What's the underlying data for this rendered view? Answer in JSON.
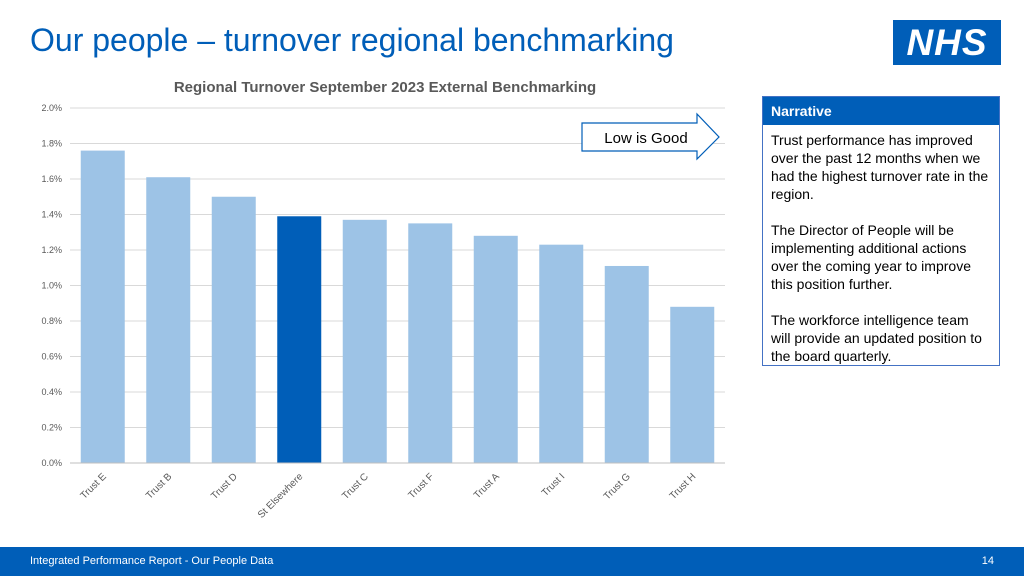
{
  "page": {
    "title": "Our people – turnover regional benchmarking",
    "logo_text": "NHS",
    "footer_text": "Integrated Performance Report - Our People Data",
    "page_number": "14"
  },
  "narrative": {
    "heading": "Narrative",
    "paragraphs": [
      "Trust performance has improved over the past 12 months when we had the highest turnover rate in the region.",
      "The Director of People will be implementing additional actions over the coming year to improve this position further.",
      "The workforce intelligence team will provide an updated position to the board quarterly."
    ]
  },
  "annotation": {
    "text": "Low is Good"
  },
  "colors": {
    "accent": "#005eb8",
    "bar": "#9dc3e6",
    "highlight_bar": "#005eb8",
    "grid": "#d9d9d9"
  },
  "chart_data": {
    "type": "bar",
    "title": "Regional Turnover September 2023 External Benchmarking",
    "xlabel": "",
    "ylabel": "",
    "categories": [
      "Trust E",
      "Trust B",
      "Trust D",
      "St Elsewhere",
      "Trust C",
      "Trust F",
      "Trust A",
      "Trust I",
      "Trust G",
      "Trust H"
    ],
    "values": [
      1.76,
      1.61,
      1.5,
      1.39,
      1.37,
      1.35,
      1.28,
      1.23,
      1.11,
      0.88
    ],
    "highlight": "St Elsewhere",
    "ylim": [
      0,
      2.0
    ],
    "yticks": [
      "0.0%",
      "0.2%",
      "0.4%",
      "0.6%",
      "0.8%",
      "1.0%",
      "1.2%",
      "1.4%",
      "1.6%",
      "1.8%",
      "2.0%"
    ],
    "grid": true
  }
}
